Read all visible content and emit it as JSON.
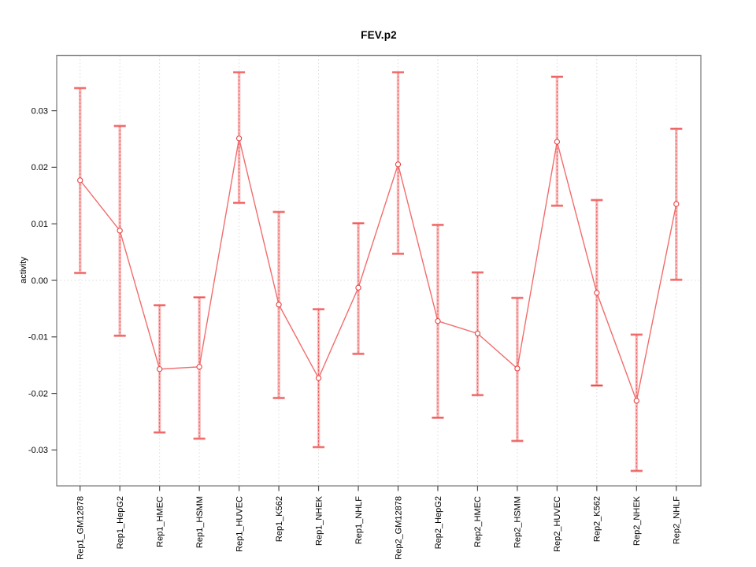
{
  "figure": {
    "title": "FEV.p2",
    "ylabel": "activity"
  },
  "chart_data": {
    "type": "line",
    "title": "FEV.p2",
    "xlabel": "",
    "ylabel": "activity",
    "legend": "none",
    "grid": "dotted vertical gridline at each category and dotted horizontal line at zero",
    "marker": "open-circle",
    "error_bars": true,
    "categories": [
      "Rep1_GM12878",
      "Rep1_HepG2",
      "Rep1_HMEC",
      "Rep1_HSMM",
      "Rep1_HUVEC",
      "Rep1_K562",
      "Rep1_NHEK",
      "Rep1_NHLF",
      "Rep2_GM12878",
      "Rep2_HepG2",
      "Rep2_HMEC",
      "Rep2_HSMM",
      "Rep2_HUVEC",
      "Rep2_K562",
      "Rep2_NHEK",
      "Rep2_NHLF"
    ],
    "series": [
      {
        "name": "activity",
        "values": [
          0.0177,
          0.0088,
          -0.0157,
          -0.0153,
          0.0251,
          -0.0043,
          -0.0173,
          -0.0013,
          0.0205,
          -0.0072,
          -0.0094,
          -0.0156,
          0.0245,
          -0.0022,
          -0.0213,
          0.0135
        ],
        "error_low": [
          0.0013,
          -0.0098,
          -0.0269,
          -0.028,
          0.0137,
          -0.0208,
          -0.0295,
          -0.013,
          0.0047,
          -0.0243,
          -0.0203,
          -0.0284,
          0.0132,
          -0.0186,
          -0.0337,
          0.0001
        ],
        "error_high": [
          0.034,
          0.0273,
          -0.0044,
          -0.003,
          0.0368,
          0.0121,
          -0.0051,
          0.0101,
          0.0368,
          0.0098,
          0.0014,
          -0.0031,
          0.036,
          0.0142,
          -0.0096,
          0.0268
        ]
      }
    ],
    "yticks": [
      0.03,
      0.02,
      0.01,
      0,
      -0.01,
      -0.02,
      -0.03
    ],
    "ytick_labels": [
      "0.03",
      "0.02",
      "0.01",
      "0.00",
      "-0.01",
      "-0.02",
      "-0.03"
    ],
    "ylim": [
      -0.0364,
      0.0398
    ],
    "colors": {
      "series_line": "#f26d6d",
      "marker_stroke": "#e64545",
      "error_band": "rgba(246,133,133,0.55)",
      "error_band_strong": "rgba(246,133,133,0.85)",
      "error_center_line": "rgba(228,62,62,0.8)",
      "error_cap": "#e84d4d",
      "grid": "#dcdcdc",
      "box": "#8a8a8a",
      "tick": "#4a4a4a",
      "text": "#000000"
    }
  }
}
